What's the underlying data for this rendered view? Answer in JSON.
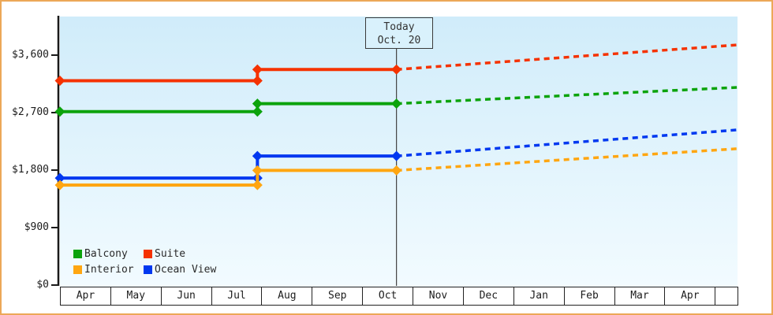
{
  "page": {
    "background": "#ffffff",
    "frame_border_color": "#eca858"
  },
  "today_marker": {
    "line1": "Today",
    "line2": "Oct. 20"
  },
  "legend": [
    {
      "label": "Balcony",
      "color": "#0ca30c"
    },
    {
      "label": "Suite",
      "color": "#f53200"
    },
    {
      "label": "Interior",
      "color": "#ffa611"
    },
    {
      "label": "Ocean View",
      "color": "#0038f0"
    }
  ],
  "chart_data": {
    "type": "line",
    "title": "",
    "description": "Cabin price history (solid) and projection after today (dashed); prices step up in late July",
    "grid": false,
    "legend_position": "bottom-left inside plot",
    "y_axis": {
      "tick_labels": [
        "$3,600",
        "$2,700",
        "$1,800",
        "$900",
        "$0"
      ],
      "tick_values": [
        3600,
        2700,
        1800,
        900,
        0
      ],
      "ylim": [
        0,
        4200
      ]
    },
    "x_axis": {
      "month_labels": [
        "Apr",
        "May",
        "Jun",
        "Jul",
        "Aug",
        "Sep",
        "Oct",
        "Nov",
        "Dec",
        "Jan",
        "Feb",
        "Mar",
        "Apr",
        ""
      ],
      "months_visible": 13.45
    },
    "events": {
      "price_step_month_index": 3.92,
      "today_month_index": 6.68,
      "projection_end_month_index": 13.45
    },
    "series": [
      {
        "name": "Suite",
        "color": "#f53200",
        "initial_price": 3200,
        "price_after_july_increase": 3375,
        "projected_price_at_end": 3760
      },
      {
        "name": "Balcony",
        "color": "#0ca30c",
        "initial_price": 2715,
        "price_after_july_increase": 2840,
        "projected_price_at_end": 3095
      },
      {
        "name": "Ocean View",
        "color": "#0038f0",
        "initial_price": 1675,
        "price_after_july_increase": 2020,
        "projected_price_at_end": 2430
      },
      {
        "name": "Interior",
        "color": "#ffa611",
        "initial_price": 1565,
        "price_after_july_increase": 1795,
        "projected_price_at_end": 2135
      }
    ]
  }
}
